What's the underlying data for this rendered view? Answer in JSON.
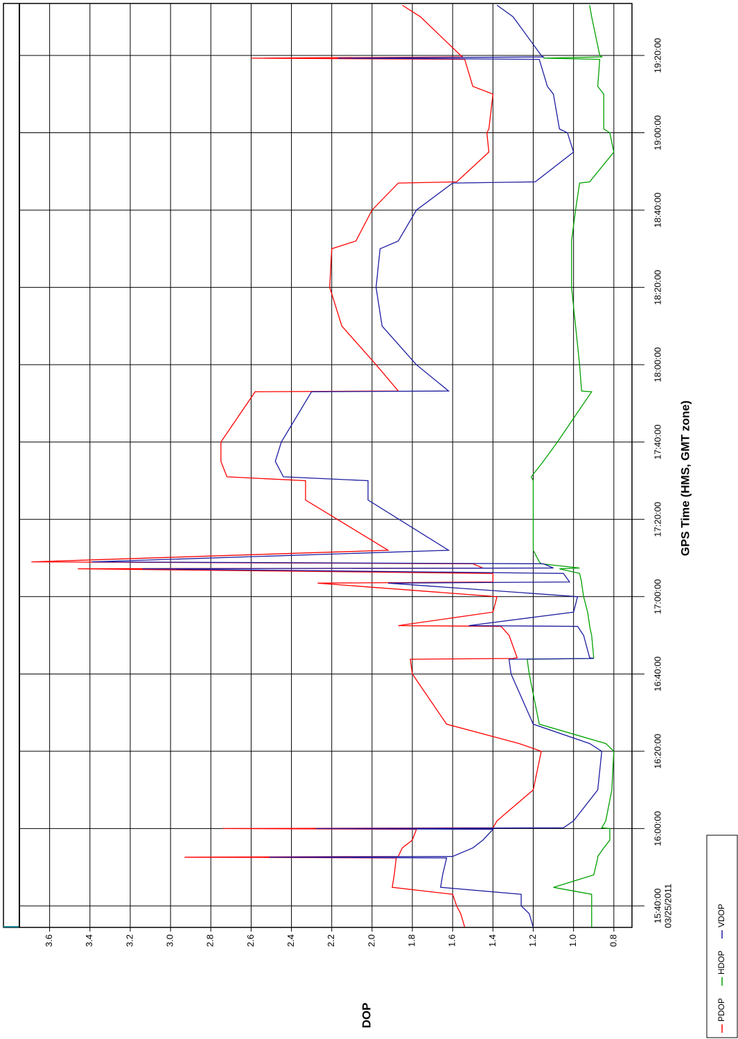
{
  "chart_data": {
    "type": "line",
    "x_label": "GPS Time (HMS, GMT zone)",
    "y_label": "DOP",
    "date": "03/25/2011",
    "x": [
      56070,
      56280,
      56400,
      56580,
      56688,
      56880,
      57144,
      57156,
      57168,
      57300,
      57420,
      57588,
      57600,
      57612,
      57720,
      58200,
      58800,
      58920,
      59220,
      60000,
      60228,
      60240,
      60252,
      60600,
      60738,
      60750,
      60960,
      61200,
      61410,
      61428,
      61560,
      61632,
      61644,
      61710,
      61740,
      61920,
      62700,
      63000,
      63060,
      63300,
      63600,
      64380,
      64392,
      64800,
      65400,
      66000,
      66600,
      66720,
      67200,
      67620,
      67638,
      68100,
      68400,
      68460,
      69000,
      69120,
      69540,
      69558,
      69576,
      69600,
      70200,
      70380
    ],
    "series": [
      {
        "name": "PDOP",
        "color": "#ff0000",
        "values": [
          1.54,
          1.56,
          1.58,
          1.6,
          1.9,
          1.89,
          1.88,
          2.93,
          1.87,
          1.85,
          1.8,
          1.78,
          2.74,
          1.4,
          1.38,
          1.2,
          1.16,
          1.27,
          1.63,
          1.8,
          1.81,
          1.3,
          1.28,
          1.32,
          1.36,
          1.87,
          1.4,
          1.38,
          2.27,
          1.4,
          1.4,
          3.46,
          1.45,
          1.5,
          3.69,
          1.92,
          2.33,
          2.33,
          2.72,
          2.75,
          2.75,
          2.58,
          1.87,
          1.98,
          2.15,
          2.21,
          2.2,
          2.08,
          2.0,
          1.87,
          1.58,
          1.42,
          1.43,
          1.42,
          1.4,
          1.5,
          1.54,
          2.6,
          1.55,
          1.56,
          1.76,
          1.85
        ]
      },
      {
        "name": "HDOP",
        "color": "#00a000",
        "values": [
          0.91,
          0.91,
          0.91,
          0.91,
          1.1,
          0.9,
          0.88,
          0.88,
          0.88,
          0.85,
          0.82,
          0.82,
          0.82,
          0.86,
          0.84,
          0.81,
          0.8,
          0.84,
          1.17,
          1.22,
          1.23,
          0.91,
          0.9,
          0.91,
          0.92,
          0.92,
          0.93,
          0.95,
          0.96,
          0.96,
          0.97,
          1.07,
          0.97,
          1.16,
          1.17,
          1.2,
          1.2,
          1.2,
          1.21,
          1.15,
          1.08,
          0.91,
          0.96,
          0.97,
          0.99,
          1.01,
          1.01,
          1.01,
          0.99,
          0.97,
          0.92,
          0.8,
          0.82,
          0.85,
          0.85,
          0.88,
          0.87,
          1.15,
          0.86,
          0.87,
          0.91,
          0.92
        ]
      },
      {
        "name": "VDOP",
        "color": "#1c1ca0",
        "values": [
          1.2,
          1.22,
          1.26,
          1.26,
          1.66,
          1.65,
          1.63,
          2.51,
          1.6,
          1.5,
          1.45,
          1.4,
          2.28,
          1.05,
          1.0,
          0.88,
          0.86,
          0.92,
          1.2,
          1.31,
          1.32,
          0.9,
          0.92,
          0.95,
          0.98,
          1.52,
          1.0,
          0.98,
          1.92,
          1.02,
          1.05,
          3.14,
          1.1,
          1.15,
          3.39,
          1.62,
          2.02,
          2.02,
          2.44,
          2.48,
          2.45,
          2.3,
          1.62,
          1.78,
          1.95,
          1.98,
          1.96,
          1.87,
          1.78,
          1.6,
          1.19,
          1.0,
          1.03,
          1.07,
          1.1,
          1.13,
          1.17,
          2.17,
          1.15,
          1.16,
          1.3,
          1.38
        ]
      }
    ],
    "xlim": [
      56066,
      70407
    ],
    "xticks": [
      {
        "value": 56400,
        "label": "15:40:00"
      },
      {
        "value": 57600,
        "label": "16:00:00"
      },
      {
        "value": 58800,
        "label": "16:20:00"
      },
      {
        "value": 60000,
        "label": "16:40:00"
      },
      {
        "value": 61200,
        "label": "17:00:00"
      },
      {
        "value": 62400,
        "label": "17:20:00"
      },
      {
        "value": 63600,
        "label": "17:40:00"
      },
      {
        "value": 64800,
        "label": "18:00:00"
      },
      {
        "value": 66000,
        "label": "18:20:00"
      },
      {
        "value": 67200,
        "label": "18:40:00"
      },
      {
        "value": 68400,
        "label": "19:00:00"
      },
      {
        "value": 69600,
        "label": "19:20:00"
      }
    ],
    "ylim": [
      0.71,
      3.75
    ],
    "yticks": [
      0.8,
      {
        "value": 1,
        "label": "1.0"
      },
      1.2,
      1.4,
      1.6,
      1.8,
      {
        "value": 2,
        "label": "2.0"
      },
      2.2,
      2.4,
      2.6,
      2.8,
      {
        "value": 3,
        "label": "3.0"
      },
      3.2,
      3.4,
      3.6
    ],
    "grid": true
  }
}
